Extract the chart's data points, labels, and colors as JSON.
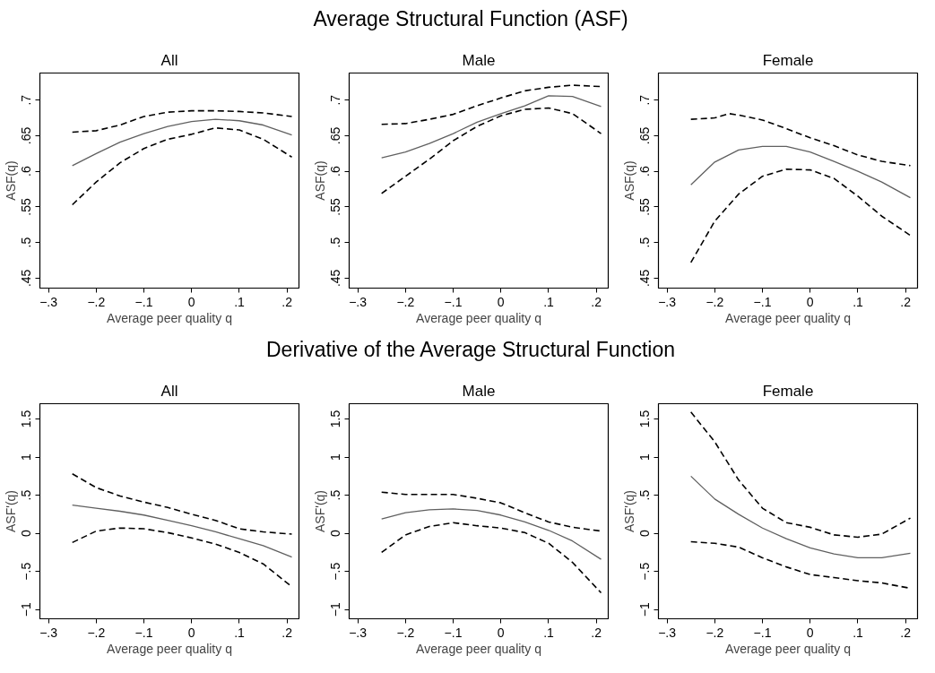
{
  "chart_data": [
    {
      "type": "line",
      "title": "All",
      "annotations": [
        "Average Structural Function (ASF)"
      ],
      "xlabel": "Average peer quality q",
      "ylabel": "ASF(q)",
      "x": [
        -0.25,
        -0.2,
        -0.15,
        -0.1,
        -0.05,
        0,
        0.05,
        0.1,
        0.15,
        0.21
      ],
      "xlim": [
        -0.318,
        0.225
      ],
      "ylim": [
        0.436,
        0.738
      ],
      "xticks": [
        {
          "value": -0.3,
          "label": "−.3"
        },
        {
          "value": -0.2,
          "label": "−.2"
        },
        {
          "value": -0.1,
          "label": "−.1"
        },
        0,
        {
          "value": 0.1,
          "label": ".1"
        },
        {
          "value": 0.2,
          "label": ".2"
        }
      ],
      "yticks": [
        {
          "value": 0.45,
          "label": ".45"
        },
        {
          "value": 0.5,
          "label": ".5"
        },
        {
          "value": 0.55,
          "label": ".55"
        },
        {
          "value": 0.6,
          "label": ".6"
        },
        {
          "value": 0.65,
          "label": ".65"
        },
        {
          "value": 0.7,
          "label": ".7"
        }
      ],
      "grid": false,
      "series": [
        {
          "color": "#606060",
          "line_style": "solid",
          "values": [
            0.608,
            0.625,
            0.641,
            0.653,
            0.663,
            0.67,
            0.673,
            0.671,
            0.665,
            0.651
          ]
        },
        {
          "color": "#000000",
          "line_style": "dashed",
          "values": [
            0.655,
            0.657,
            0.665,
            0.677,
            0.683,
            0.685,
            0.685,
            0.684,
            0.682,
            0.677
          ]
        },
        {
          "color": "#000000",
          "line_style": "dashed",
          "values": [
            0.553,
            0.585,
            0.612,
            0.632,
            0.645,
            0.652,
            0.661,
            0.658,
            0.645,
            0.62
          ]
        }
      ]
    },
    {
      "type": "line",
      "title": "Male",
      "xlabel": "Average peer quality q",
      "ylabel": "ASF(q)",
      "x": [
        -0.25,
        -0.2,
        -0.15,
        -0.1,
        -0.05,
        0,
        0.05,
        0.1,
        0.15,
        0.21
      ],
      "xlim": [
        -0.318,
        0.225
      ],
      "ylim": [
        0.436,
        0.738
      ],
      "xticks": [
        {
          "value": -0.3,
          "label": "−.3"
        },
        {
          "value": -0.2,
          "label": "−.2"
        },
        {
          "value": -0.1,
          "label": "−.1"
        },
        0,
        {
          "value": 0.1,
          "label": ".1"
        },
        {
          "value": 0.2,
          "label": ".2"
        }
      ],
      "yticks": [
        {
          "value": 0.45,
          "label": ".45"
        },
        {
          "value": 0.5,
          "label": ".5"
        },
        {
          "value": 0.55,
          "label": ".55"
        },
        {
          "value": 0.6,
          "label": ".6"
        },
        {
          "value": 0.65,
          "label": ".65"
        },
        {
          "value": 0.7,
          "label": ".7"
        }
      ],
      "grid": false,
      "series": [
        {
          "color": "#606060",
          "line_style": "solid",
          "values": [
            0.619,
            0.627,
            0.639,
            0.653,
            0.669,
            0.681,
            0.692,
            0.706,
            0.705,
            0.691
          ]
        },
        {
          "color": "#000000",
          "line_style": "dashed",
          "values": [
            0.666,
            0.667,
            0.673,
            0.68,
            0.692,
            0.703,
            0.713,
            0.718,
            0.721,
            0.719
          ]
        },
        {
          "color": "#000000",
          "line_style": "dashed",
          "values": [
            0.569,
            0.593,
            0.617,
            0.643,
            0.663,
            0.678,
            0.687,
            0.689,
            0.681,
            0.653
          ]
        }
      ]
    },
    {
      "type": "line",
      "title": "Female",
      "xlabel": "Average peer quality q",
      "ylabel": "ASF(q)",
      "x": [
        -0.25,
        -0.2,
        -0.15,
        -0.1,
        -0.05,
        0,
        0.05,
        0.1,
        0.15,
        0.21
      ],
      "xlim": [
        -0.318,
        0.225
      ],
      "ylim": [
        0.436,
        0.738
      ],
      "xticks": [
        {
          "value": -0.3,
          "label": "−.3"
        },
        {
          "value": -0.2,
          "label": "−.2"
        },
        {
          "value": -0.1,
          "label": "−.1"
        },
        0,
        {
          "value": 0.1,
          "label": ".1"
        },
        {
          "value": 0.2,
          "label": ".2"
        }
      ],
      "yticks": [
        {
          "value": 0.45,
          "label": ".45"
        },
        {
          "value": 0.5,
          "label": ".5"
        },
        {
          "value": 0.55,
          "label": ".55"
        },
        {
          "value": 0.6,
          "label": ".6"
        },
        {
          "value": 0.65,
          "label": ".65"
        },
        {
          "value": 0.7,
          "label": ".7"
        }
      ],
      "grid": false,
      "series": [
        {
          "color": "#606060",
          "line_style": "solid",
          "values": [
            0.581,
            0.613,
            0.63,
            0.635,
            0.635,
            0.627,
            0.614,
            0.6,
            0.585,
            0.563
          ]
        },
        {
          "color": "#000000",
          "line_style": "dashed",
          "x": [
            -0.25,
            -0.2,
            -0.17,
            -0.15,
            -0.1,
            -0.05,
            0,
            0.05,
            0.1,
            0.15,
            0.21
          ],
          "values": [
            0.673,
            0.675,
            0.681,
            0.679,
            0.672,
            0.66,
            0.647,
            0.636,
            0.623,
            0.614,
            0.608
          ]
        },
        {
          "color": "#000000",
          "line_style": "dashed",
          "values": [
            0.472,
            0.53,
            0.568,
            0.593,
            0.603,
            0.602,
            0.59,
            0.565,
            0.537,
            0.51
          ]
        }
      ]
    },
    {
      "type": "line",
      "title": "All",
      "annotations": [
        "Derivative of the Average Structural Function"
      ],
      "xlabel": "Average peer quality q",
      "ylabel": "ASF'(q)",
      "x": [
        -0.25,
        -0.2,
        -0.15,
        -0.1,
        -0.05,
        0,
        0.05,
        0.1,
        0.15,
        0.21
      ],
      "xlim": [
        -0.318,
        0.225
      ],
      "ylim": [
        -1.12,
        1.7
      ],
      "xticks": [
        {
          "value": -0.3,
          "label": "−.3"
        },
        {
          "value": -0.2,
          "label": "−.2"
        },
        {
          "value": -0.1,
          "label": "−.1"
        },
        0,
        {
          "value": 0.1,
          "label": ".1"
        },
        {
          "value": 0.2,
          "label": ".2"
        }
      ],
      "yticks": [
        {
          "value": -1,
          "label": "−1"
        },
        {
          "value": -0.5,
          "label": "−.5"
        },
        0,
        {
          "value": 0.5,
          "label": ".5"
        },
        1,
        1.5
      ],
      "grid": false,
      "series": [
        {
          "color": "#606060",
          "line_style": "solid",
          "values": [
            0.37,
            0.33,
            0.29,
            0.24,
            0.17,
            0.1,
            0.02,
            -0.07,
            -0.16,
            -0.31
          ]
        },
        {
          "color": "#000000",
          "line_style": "dashed",
          "values": [
            0.78,
            0.6,
            0.49,
            0.41,
            0.34,
            0.25,
            0.17,
            0.06,
            0.02,
            -0.01
          ]
        },
        {
          "color": "#000000",
          "line_style": "dashed",
          "values": [
            -0.12,
            0.03,
            0.07,
            0.06,
            0.01,
            -0.06,
            -0.14,
            -0.25,
            -0.4,
            -0.7
          ]
        }
      ]
    },
    {
      "type": "line",
      "title": "Male",
      "xlabel": "Average peer quality q",
      "ylabel": "ASF'(q)",
      "x": [
        -0.25,
        -0.2,
        -0.15,
        -0.1,
        -0.05,
        0,
        0.05,
        0.1,
        0.15,
        0.21
      ],
      "xlim": [
        -0.318,
        0.225
      ],
      "ylim": [
        -1.12,
        1.7
      ],
      "xticks": [
        {
          "value": -0.3,
          "label": "−.3"
        },
        {
          "value": -0.2,
          "label": "−.2"
        },
        {
          "value": -0.1,
          "label": "−.1"
        },
        0,
        {
          "value": 0.1,
          "label": ".1"
        },
        {
          "value": 0.2,
          "label": ".2"
        }
      ],
      "yticks": [
        {
          "value": -1,
          "label": "−1"
        },
        {
          "value": -0.5,
          "label": "−.5"
        },
        0,
        {
          "value": 0.5,
          "label": ".5"
        },
        1,
        1.5
      ],
      "grid": false,
      "series": [
        {
          "color": "#606060",
          "line_style": "solid",
          "values": [
            0.19,
            0.27,
            0.31,
            0.32,
            0.3,
            0.24,
            0.15,
            0.04,
            -0.1,
            -0.34
          ]
        },
        {
          "color": "#000000",
          "line_style": "dashed",
          "values": [
            0.54,
            0.51,
            0.51,
            0.51,
            0.46,
            0.4,
            0.27,
            0.15,
            0.08,
            0.03
          ]
        },
        {
          "color": "#000000",
          "line_style": "dashed",
          "values": [
            -0.25,
            -0.02,
            0.09,
            0.14,
            0.1,
            0.07,
            0.01,
            -0.13,
            -0.38,
            -0.78
          ]
        }
      ]
    },
    {
      "type": "line",
      "title": "Female",
      "xlabel": "Average peer quality q",
      "ylabel": "ASF'(q)",
      "x": [
        -0.25,
        -0.2,
        -0.15,
        -0.1,
        -0.05,
        0,
        0.05,
        0.1,
        0.15,
        0.21
      ],
      "xlim": [
        -0.318,
        0.225
      ],
      "ylim": [
        -1.12,
        1.7
      ],
      "xticks": [
        {
          "value": -0.3,
          "label": "−.3"
        },
        {
          "value": -0.2,
          "label": "−.2"
        },
        {
          "value": -0.1,
          "label": "−.1"
        },
        0,
        {
          "value": 0.1,
          "label": ".1"
        },
        {
          "value": 0.2,
          "label": ".2"
        }
      ],
      "yticks": [
        {
          "value": -1,
          "label": "−1"
        },
        {
          "value": -0.5,
          "label": "−.5"
        },
        0,
        {
          "value": 0.5,
          "label": ".5"
        },
        1,
        1.5
      ],
      "grid": false,
      "series": [
        {
          "color": "#606060",
          "line_style": "solid",
          "values": [
            0.75,
            0.45,
            0.25,
            0.07,
            -0.07,
            -0.19,
            -0.27,
            -0.32,
            -0.32,
            -0.26
          ]
        },
        {
          "color": "#000000",
          "line_style": "dashed",
          "values": [
            1.59,
            1.2,
            0.7,
            0.33,
            0.14,
            0.08,
            -0.02,
            -0.05,
            -0.01,
            0.2
          ]
        },
        {
          "color": "#000000",
          "line_style": "dashed",
          "values": [
            -0.11,
            -0.13,
            -0.18,
            -0.32,
            -0.44,
            -0.54,
            -0.58,
            -0.62,
            -0.65,
            -0.72
          ]
        }
      ]
    }
  ]
}
